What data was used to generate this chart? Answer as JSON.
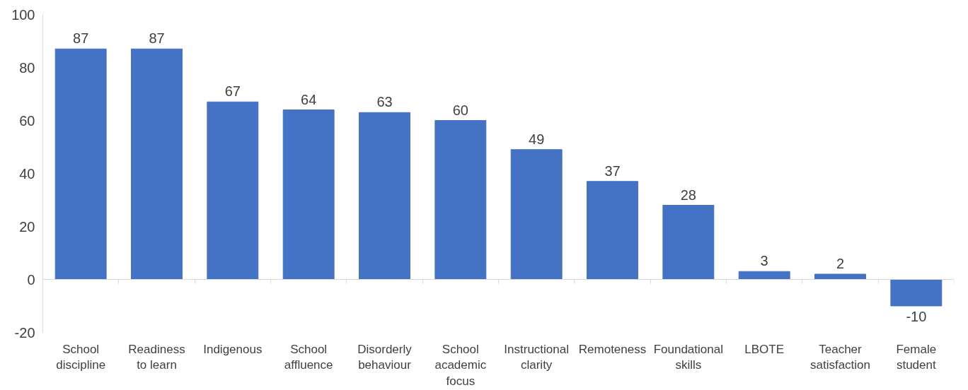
{
  "chart_data": {
    "type": "bar",
    "categories": [
      "School discipline",
      "Readiness to learn",
      "Indigenous",
      "School affluence",
      "Disorderly behaviour",
      "School academic focus",
      "Instructional clarity",
      "Remoteness",
      "Foundational skills",
      "LBOTE",
      "Teacher satisfaction",
      "Female student"
    ],
    "values": [
      87,
      87,
      67,
      64,
      63,
      60,
      49,
      37,
      28,
      3,
      2,
      -10
    ],
    "color": "#4472c4",
    "ylim": [
      -20,
      100
    ],
    "yticks": [
      -20,
      0,
      20,
      40,
      60,
      80,
      100
    ],
    "data_labels": true
  }
}
